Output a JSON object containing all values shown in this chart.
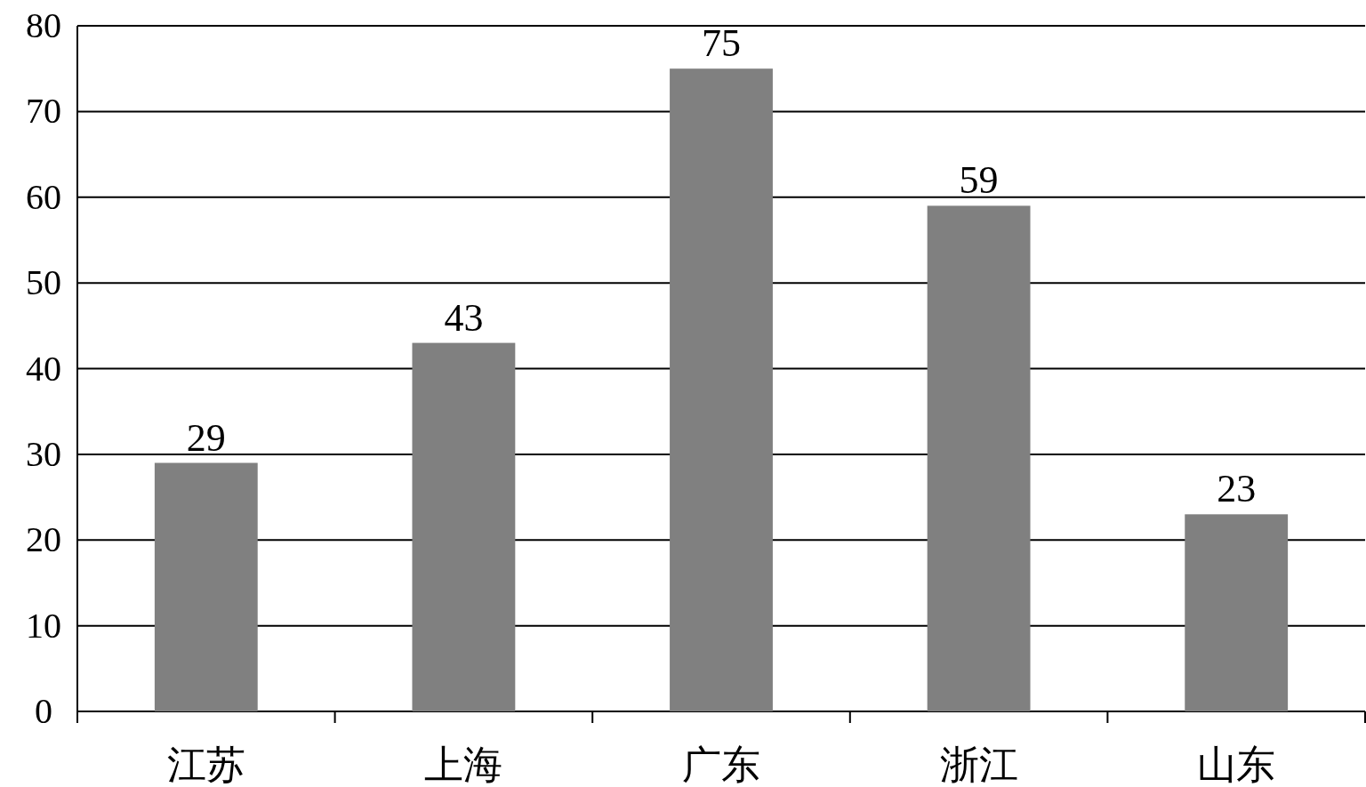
{
  "chart_data": {
    "type": "bar",
    "categories": [
      "江苏",
      "上海",
      "广东",
      "浙江",
      "山东"
    ],
    "values": [
      29,
      43,
      75,
      59,
      23
    ],
    "color": "#808080",
    "ylim": [
      0,
      80
    ],
    "yticks": [
      0,
      10,
      20,
      30,
      40,
      50,
      60,
      70,
      80
    ],
    "grid": "y",
    "data_labels": true
  }
}
